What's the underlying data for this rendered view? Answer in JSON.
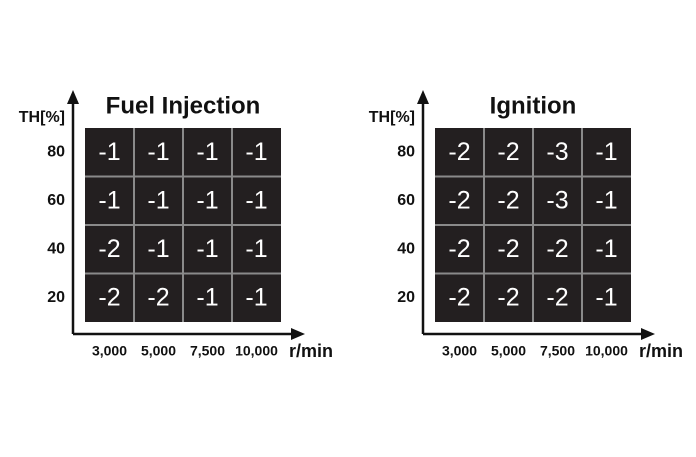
{
  "panels": [
    {
      "title": "Fuel Injection",
      "y_axis_label": "TH[%]",
      "x_axis_label": "r/min",
      "row_labels": [
        80,
        60,
        40,
        20
      ],
      "column_labels": [
        "3,000",
        "5,000",
        "7,500",
        "10,000"
      ],
      "rows": [
        [
          -1,
          -1,
          -1,
          -1
        ],
        [
          -1,
          -1,
          -1,
          -1
        ],
        [
          -2,
          -1,
          -1,
          -1
        ],
        [
          -2,
          -2,
          -1,
          -1
        ]
      ]
    },
    {
      "title": "Ignition",
      "y_axis_label": "TH[%]",
      "x_axis_label": "r/min",
      "row_labels": [
        80,
        60,
        40,
        20
      ],
      "column_labels": [
        "3,000",
        "5,000",
        "7,500",
        "10,000"
      ],
      "rows": [
        [
          -2,
          -2,
          -3,
          -1
        ],
        [
          -2,
          -2,
          -3,
          -1
        ],
        [
          -2,
          -2,
          -2,
          -1
        ],
        [
          -2,
          -2,
          -2,
          -1
        ]
      ]
    }
  ]
}
